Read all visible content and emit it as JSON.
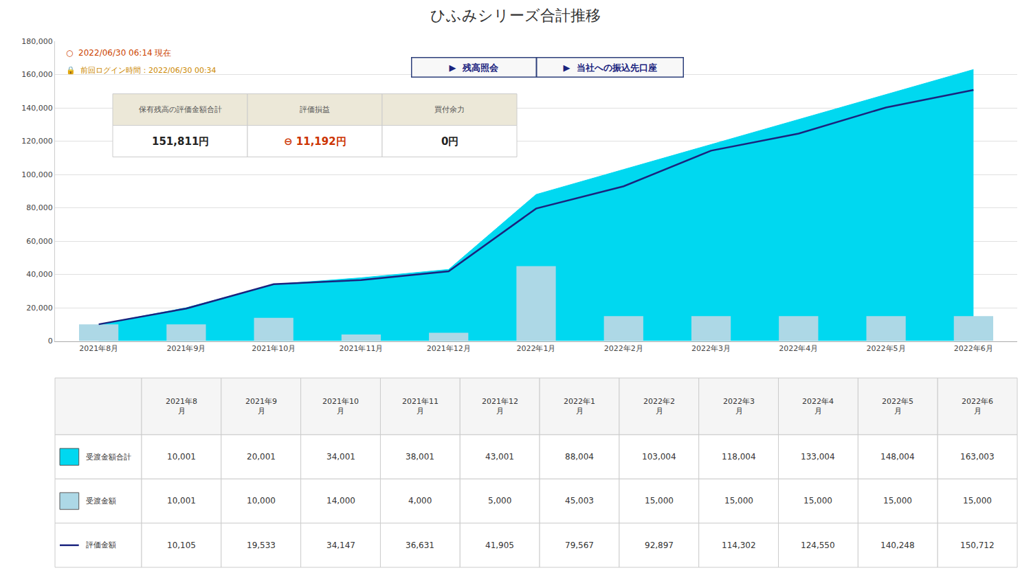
{
  "chart_data": {
    "type": "combo",
    "title": "ひふみシリーズ合計推移",
    "categories": [
      "2021年8月",
      "2021年9月",
      "2021年10月",
      "2021年11月",
      "2021年12月",
      "2022年1月",
      "2022年2月",
      "2022年3月",
      "2022年4月",
      "2022年5月",
      "2022年6月"
    ],
    "series": [
      {
        "name": "受渡金額合計",
        "type": "area",
        "color": "#00d8f0",
        "values": [
          10001,
          20001,
          34001,
          38001,
          43001,
          88004,
          103004,
          118004,
          133004,
          148004,
          163003
        ],
        "value_labels": [
          "10,001",
          "20,001",
          "34,001",
          "38,001",
          "43,001",
          "88,004",
          "103,004",
          "118,004",
          "133,004",
          "148,004",
          "163,003"
        ]
      },
      {
        "name": "受渡金額",
        "type": "bar",
        "color": "#add8e6",
        "values": [
          10001,
          10000,
          14000,
          4000,
          5000,
          45003,
          15000,
          15000,
          15000,
          15000,
          15000
        ],
        "value_labels": [
          "10,001",
          "10,000",
          "14,000",
          "4,000",
          "5,000",
          "45,003",
          "15,000",
          "15,000",
          "15,000",
          "15,000",
          "15,000"
        ]
      },
      {
        "name": "評価金額",
        "type": "line",
        "color": "#1a237e",
        "values": [
          10105,
          19533,
          34147,
          36631,
          41905,
          79567,
          92897,
          114302,
          124550,
          140248,
          150712
        ],
        "value_labels": [
          "10,105",
          "19,533",
          "34,147",
          "36,631",
          "41,905",
          "79,567",
          "92,897",
          "114,302",
          "124,550",
          "140,248",
          "150,712"
        ]
      }
    ],
    "ylim": [
      0,
      180000
    ],
    "yticks": [
      0,
      {
        "value": 20000,
        "label": "20,000"
      },
      {
        "value": 40000,
        "label": "40,000"
      },
      {
        "value": 60000,
        "label": "60,000"
      },
      {
        "value": 80000,
        "label": "80,000"
      },
      {
        "value": 100000,
        "label": "100,000"
      },
      {
        "value": 120000,
        "label": "120,000"
      },
      {
        "value": 140000,
        "label": "140,000"
      },
      {
        "value": 160000,
        "label": "160,000"
      },
      {
        "value": 180000,
        "label": "180,000"
      }
    ],
    "grid": true,
    "annotations": [
      "○  2022/06/30 06:14 現在",
      "🔒  前回ログイン時間：2022/06/30 00:34",
      "▶  残高照会",
      "▶  当社への振込先口座"
    ],
    "summary": [
      {
        "header": "保有残高の評価金額合計",
        "value": "151,811円"
      },
      {
        "header": "評価損益",
        "value": "⊖ 11,192円",
        "color": "#cc3300"
      },
      {
        "header": "買付余力",
        "value": "0円"
      }
    ],
    "table_columns": [
      [
        "2021年8",
        "月"
      ],
      [
        "2021年9",
        "月"
      ],
      [
        "2021年10",
        "月"
      ],
      [
        "2021年11",
        "月"
      ],
      [
        "2021年12",
        "月"
      ],
      [
        "2022年1",
        "月"
      ],
      [
        "2022年2",
        "月"
      ],
      [
        "2022年3",
        "月"
      ],
      [
        "2022年4",
        "月"
      ],
      [
        "2022年5",
        "月"
      ],
      [
        "2022年6",
        "月"
      ]
    ]
  }
}
